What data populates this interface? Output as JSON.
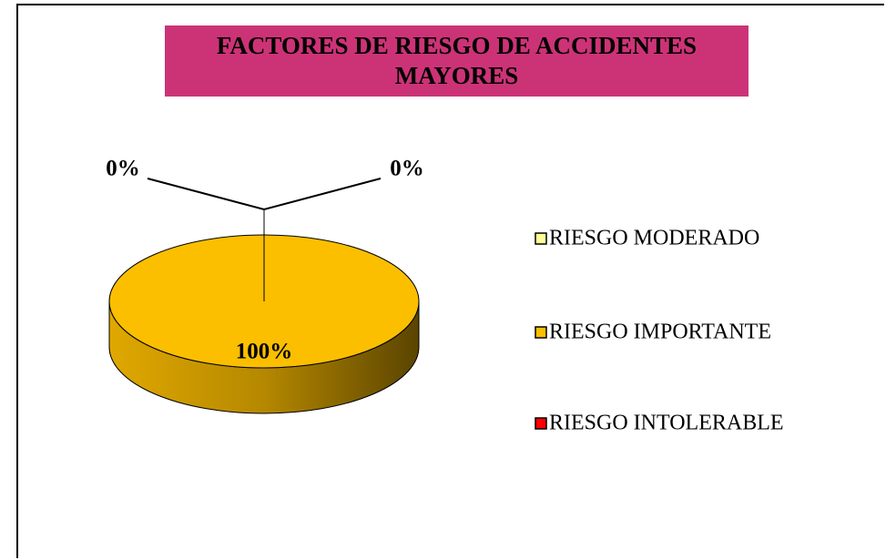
{
  "chart_data": {
    "type": "pie",
    "title": "FACTORES DE RIESGO DE ACCIDENTES MAYORES",
    "categories": [
      "RIESGO MODERADO",
      "RIESGO IMPORTANTE",
      "RIESGO INTOLERABLE"
    ],
    "values": [
      0,
      100,
      0
    ],
    "value_labels": [
      "0%",
      "100%",
      "0%"
    ],
    "colors": [
      "#ffff99",
      "#fbbf00",
      "#ff0000"
    ],
    "legend": "right"
  }
}
